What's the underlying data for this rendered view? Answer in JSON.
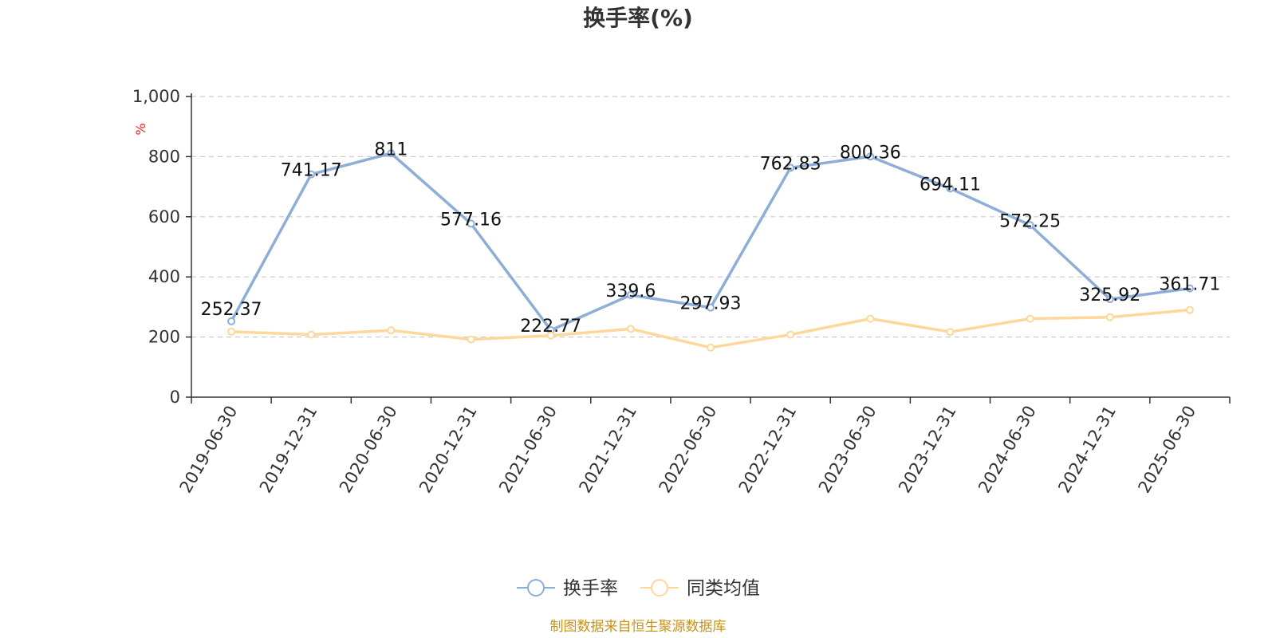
{
  "chart_data": {
    "type": "line",
    "title": "换手率(%)",
    "y_unit": "%",
    "categories": [
      "2019-06-30",
      "2019-12-31",
      "2020-06-30",
      "2020-12-31",
      "2021-06-30",
      "2021-12-31",
      "2022-06-30",
      "2022-12-31",
      "2023-06-30",
      "2023-12-31",
      "2024-06-30",
      "2024-12-31",
      "2025-06-30"
    ],
    "y_ticks": [
      "0",
      "200",
      "400",
      "600",
      "800",
      "1,000"
    ],
    "ylim": [
      0,
      1000
    ],
    "grid": true,
    "legend_position": "bottom",
    "series": [
      {
        "name": "换手率",
        "color": "#8eaed7",
        "values": [
          252.37,
          741.17,
          811,
          577.16,
          222.77,
          339.6,
          297.93,
          762.83,
          800.36,
          694.11,
          572.25,
          325.92,
          361.71
        ],
        "labels": [
          "252.37",
          "741.17",
          "811",
          "577.16",
          "222.77",
          "339.6",
          "297.93",
          "762.83",
          "800.36",
          "694.11",
          "572.25",
          "325.92",
          "361.71"
        ]
      },
      {
        "name": "同类均值",
        "color": "#fdd89a",
        "values": [
          218,
          208,
          222,
          192,
          205,
          227,
          165,
          208,
          261,
          217,
          261,
          266,
          290
        ]
      }
    ],
    "source": "制图数据来自恒生聚源数据库"
  }
}
